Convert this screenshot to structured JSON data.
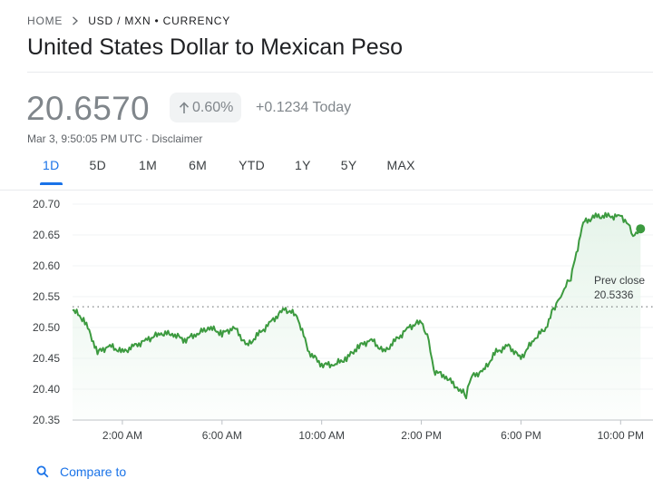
{
  "breadcrumb": {
    "home": "HOME",
    "current": "USD / MXN • CURRENCY"
  },
  "title": "United States Dollar to Mexican Peso",
  "quote": {
    "price": "20.6570",
    "change_pct": "0.60%",
    "change_today": "+0.1234 Today",
    "timestamp": "Mar 3, 9:50:05 PM UTC · Disclaimer"
  },
  "range_tabs": [
    {
      "label": "1D",
      "active": true
    },
    {
      "label": "5D",
      "active": false
    },
    {
      "label": "1M",
      "active": false
    },
    {
      "label": "6M",
      "active": false
    },
    {
      "label": "YTD",
      "active": false
    },
    {
      "label": "1Y",
      "active": false
    },
    {
      "label": "5Y",
      "active": false
    },
    {
      "label": "MAX",
      "active": false
    }
  ],
  "compare": {
    "label": "Compare to"
  },
  "icons": {
    "breadcrumb_separator": "chevron-right-icon",
    "change_direction": "arrow-up-icon",
    "compare": "search-icon"
  },
  "colors": {
    "line": "#3c9a3f",
    "fill": "#e6f4ea",
    "accent": "#1a73e8",
    "muted": "#80868b"
  },
  "chart_data": {
    "type": "area",
    "title": "",
    "xlabel": "",
    "ylabel": "",
    "x_unit": "hours",
    "xlim": [
      0.0,
      23.3
    ],
    "ylim": [
      20.35,
      20.7
    ],
    "y_ticks": [
      20.35,
      20.4,
      20.45,
      20.5,
      20.55,
      20.6,
      20.65,
      20.7
    ],
    "y_tick_labels": [
      "20.35",
      "20.40",
      "20.45",
      "20.50",
      "20.55",
      "20.60",
      "20.65",
      "20.70"
    ],
    "x_ticks": [
      2,
      6,
      10,
      14,
      18,
      22
    ],
    "x_tick_labels": [
      "2:00 AM",
      "6:00 AM",
      "10:00 AM",
      "2:00 PM",
      "6:00 PM",
      "10:00 PM"
    ],
    "grid": true,
    "prev_close": {
      "label": "Prev close",
      "value": "20.5336",
      "y": 20.5336
    },
    "series": [
      {
        "x": [
          0.0,
          0.5,
          1.0,
          1.5,
          2.0,
          2.5,
          3.0,
          3.5,
          4.0,
          4.5,
          5.0,
          5.5,
          6.0,
          6.5,
          7.0,
          7.5,
          8.0,
          8.5,
          9.0,
          9.5,
          10.0,
          10.5,
          11.0,
          11.5,
          12.0,
          12.5,
          13.0,
          13.5,
          14.0,
          14.3,
          14.5,
          15.0,
          15.5,
          15.8,
          16.0,
          16.5,
          17.0,
          17.5,
          18.0,
          18.5,
          19.0,
          19.3,
          19.6,
          19.8,
          20.0,
          20.5,
          21.0,
          21.5,
          22.0,
          22.3,
          22.5,
          22.8
        ],
        "y": [
          20.53,
          20.51,
          20.46,
          20.47,
          20.46,
          20.47,
          20.48,
          20.49,
          20.49,
          20.48,
          20.49,
          20.5,
          20.49,
          20.5,
          20.47,
          20.49,
          20.51,
          20.53,
          20.52,
          20.46,
          20.44,
          20.44,
          20.45,
          20.47,
          20.48,
          20.46,
          20.48,
          20.5,
          20.51,
          20.48,
          20.43,
          20.42,
          20.4,
          20.39,
          20.42,
          20.43,
          20.46,
          20.47,
          20.45,
          20.48,
          20.5,
          20.53,
          20.55,
          20.57,
          20.58,
          20.67,
          20.68,
          20.68,
          20.68,
          20.67,
          20.65,
          20.66
        ]
      }
    ]
  }
}
